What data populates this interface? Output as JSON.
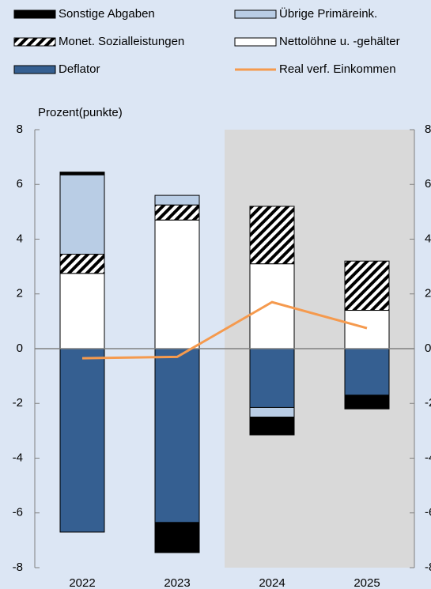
{
  "chart_data": {
    "type": "bar",
    "stacked": true,
    "y_label": "Prozent(punkte)",
    "categories": [
      "2022",
      "2023",
      "2024",
      "2025"
    ],
    "series": [
      {
        "name": "Sonstige Abgaben",
        "color": "#000000",
        "values": [
          0.1,
          -1.1,
          -0.65,
          -0.5
        ]
      },
      {
        "name": "Übrige Primäreink.",
        "color": "#b9cde5",
        "values": [
          2.9,
          0.35,
          -0.35,
          0
        ]
      },
      {
        "name": "Monet. Sozialleistungen",
        "color": "#000000",
        "pattern": "hatch",
        "values": [
          0.7,
          0.55,
          2.1,
          1.8
        ]
      },
      {
        "name": "Nettolöhne u. -gehälter",
        "color": "#ffffff",
        "values": [
          2.75,
          4.7,
          3.1,
          1.4
        ]
      },
      {
        "name": "Deflator",
        "color": "#355f91",
        "values": [
          -6.7,
          -6.35,
          -2.15,
          -1.7
        ]
      },
      {
        "name": "Real verf. Einkommen",
        "type": "line",
        "color": "#f59a4e",
        "values": [
          -0.35,
          -0.3,
          1.7,
          0.75
        ]
      }
    ],
    "ylim": [
      -8,
      8
    ],
    "yticks": [
      -8,
      -6,
      -4,
      -2,
      0,
      2,
      4,
      6,
      8
    ],
    "y2lim": [
      -8,
      8
    ],
    "y2ticks": [
      -8,
      -6,
      -4,
      -2,
      0,
      2,
      4,
      6,
      8
    ],
    "shaded_from": 2,
    "background": "#dce6f4",
    "shade_color": "#d9d9d9"
  }
}
